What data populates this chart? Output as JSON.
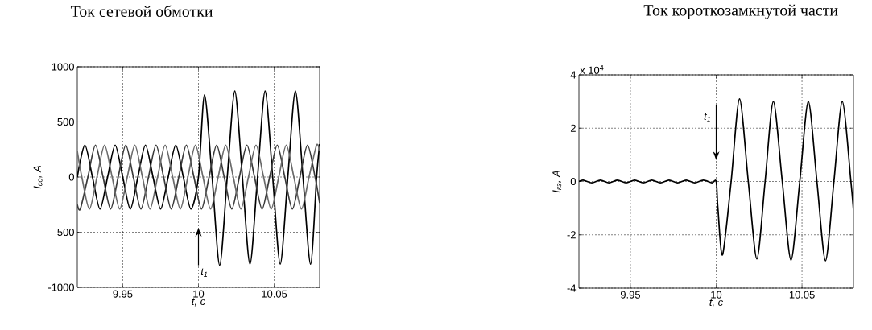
{
  "chart_data": [
    {
      "type": "line",
      "title": "Ток сетевой обмотки",
      "xlabel": "t, с",
      "ylabel": "I$_{со}$, A",
      "xlim": [
        9.92,
        10.08
      ],
      "ylim": [
        -1000,
        1000
      ],
      "xticks": [
        9.95,
        10,
        10.05
      ],
      "yticks": [
        -1000,
        -500,
        0,
        500,
        1000
      ],
      "grid": true,
      "marker": "none",
      "series": [
        {
          "color": "#000000",
          "x": [
            9.92,
            9.925,
            9.93,
            9.935,
            9.94,
            9.945,
            9.95,
            9.955,
            9.96,
            9.965,
            9.97,
            9.975,
            9.98,
            9.985,
            9.99,
            9.995,
            10.0,
            10.004,
            10.009,
            10.014,
            10.019,
            10.024,
            10.029,
            10.034,
            10.039,
            10.044,
            10.049,
            10.054,
            10.059,
            10.064,
            10.069,
            10.074,
            10.078,
            10.08
          ],
          "values": [
            0,
            290,
            0,
            -290,
            0,
            290,
            0,
            -290,
            0,
            290,
            0,
            -290,
            0,
            290,
            0,
            -290,
            0,
            745,
            0,
            -800,
            0,
            780,
            0,
            -790,
            0,
            780,
            0,
            -790,
            0,
            780,
            0,
            -790,
            0,
            300
          ]
        },
        {
          "color": "#3a3a3a",
          "x": [
            9.92,
            9.922,
            9.927,
            9.932,
            9.937,
            9.942,
            9.947,
            9.952,
            9.957,
            9.962,
            9.967,
            9.972,
            9.977,
            9.982,
            9.987,
            9.992,
            9.997,
            10.002,
            10.007,
            10.012,
            10.017,
            10.022,
            10.027,
            10.032,
            10.037,
            10.042,
            10.047,
            10.052,
            10.057,
            10.062,
            10.067,
            10.072,
            10.077,
            10.08
          ],
          "values": [
            -250,
            -290,
            0,
            290,
            0,
            -290,
            0,
            290,
            0,
            -290,
            0,
            290,
            0,
            -290,
            0,
            290,
            0,
            -290,
            0,
            290,
            0,
            -290,
            0,
            290,
            0,
            -290,
            0,
            290,
            0,
            -290,
            0,
            290,
            0,
            -235
          ]
        },
        {
          "color": "#6a6a6a",
          "x": [
            9.92,
            9.923,
            9.928,
            9.933,
            9.938,
            9.943,
            9.948,
            9.953,
            9.958,
            9.963,
            9.968,
            9.973,
            9.978,
            9.983,
            9.988,
            9.993,
            9.998,
            10.003,
            10.008,
            10.013,
            10.018,
            10.023,
            10.028,
            10.033,
            10.038,
            10.043,
            10.048,
            10.053,
            10.058,
            10.063,
            10.068,
            10.073,
            10.078,
            10.08
          ],
          "values": [
            235,
            0,
            -290,
            0,
            290,
            0,
            -290,
            0,
            290,
            0,
            -290,
            0,
            290,
            0,
            -290,
            0,
            290,
            0,
            -290,
            0,
            290,
            0,
            -290,
            0,
            290,
            0,
            -290,
            0,
            290,
            0,
            -290,
            0,
            290,
            235
          ]
        }
      ],
      "annotations": [
        "t$_{1}$"
      ]
    },
    {
      "type": "line",
      "title": "Ток короткозамкнутой части",
      "xlabel": "t, с",
      "ylabel": "I$_{кз}$, A",
      "xlim": [
        9.92,
        10.08
      ],
      "ylim": [
        -4,
        4
      ],
      "xticks": [
        9.95,
        10,
        10.05
      ],
      "yticks": [
        -4,
        -2,
        0,
        2,
        4
      ],
      "grid": true,
      "marker": "none",
      "series": [
        {
          "color": "#000000",
          "x": [
            9.92,
            9.9225,
            9.9275,
            9.9325,
            9.9375,
            9.9425,
            9.9475,
            9.9525,
            9.9575,
            9.9625,
            9.9675,
            9.9725,
            9.9775,
            9.9825,
            9.9875,
            9.9925,
            9.9975,
            10.0,
            10.001,
            10.0037,
            10.0087,
            10.0136,
            10.0187,
            10.0237,
            10.0285,
            10.0333,
            10.0385,
            10.0436,
            10.0487,
            10.0537,
            10.0587,
            10.0637,
            10.0686,
            10.0735,
            10.0785,
            10.08
          ],
          "values": [
            0,
            0.05,
            -0.05,
            0.05,
            -0.05,
            0.05,
            -0.05,
            0.05,
            -0.05,
            0.05,
            -0.05,
            0.05,
            -0.05,
            0.05,
            -0.05,
            0.05,
            -0.05,
            0,
            -1,
            -2.75,
            0,
            3.1,
            0,
            -2.9,
            0,
            3,
            0,
            -2.95,
            0,
            3,
            0,
            -2.97,
            0,
            3,
            0,
            -1.1
          ]
        }
      ],
      "annotations": [
        "x 10$^{4}$",
        "t$_{1}$"
      ]
    }
  ]
}
